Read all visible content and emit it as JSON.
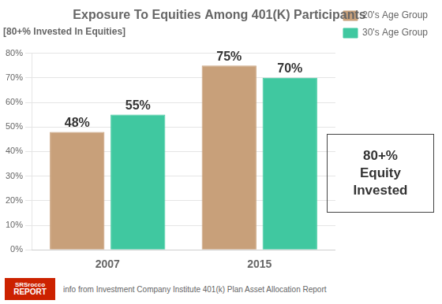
{
  "chart_data": {
    "type": "bar",
    "title": "Exposure To Equities Among 401(K) Participants",
    "subtitle": "[80+% Invested In Equities]",
    "categories": [
      "2007",
      "2015"
    ],
    "series": [
      {
        "name": "20's Age Group",
        "color": "#c8a07a",
        "values": [
          48,
          75
        ],
        "value_labels": [
          "48%",
          "75%"
        ]
      },
      {
        "name": "30's Age Group",
        "color": "#40c8a0",
        "values": [
          55,
          70
        ],
        "value_labels": [
          "55%",
          "70%"
        ]
      }
    ],
    "ylim": [
      0,
      80
    ],
    "yticks": [
      {
        "value": 0,
        "label": "0%"
      },
      {
        "value": 10,
        "label": "10%"
      },
      {
        "value": 20,
        "label": "20%"
      },
      {
        "value": 30,
        "label": "30%"
      },
      {
        "value": 40,
        "label": "40%"
      },
      {
        "value": 50,
        "label": "50%"
      },
      {
        "value": 60,
        "label": "60%"
      },
      {
        "value": 70,
        "label": "70%"
      },
      {
        "value": 80,
        "label": "80%"
      }
    ],
    "grid": true,
    "legend": "right",
    "data_labels": true,
    "annotations": [
      "80+%\nEquity\nInvested",
      "info from Investment Company Institute 401(k) Plan Asset Allocation Report",
      "SRSrocco",
      "REPORT"
    ]
  }
}
